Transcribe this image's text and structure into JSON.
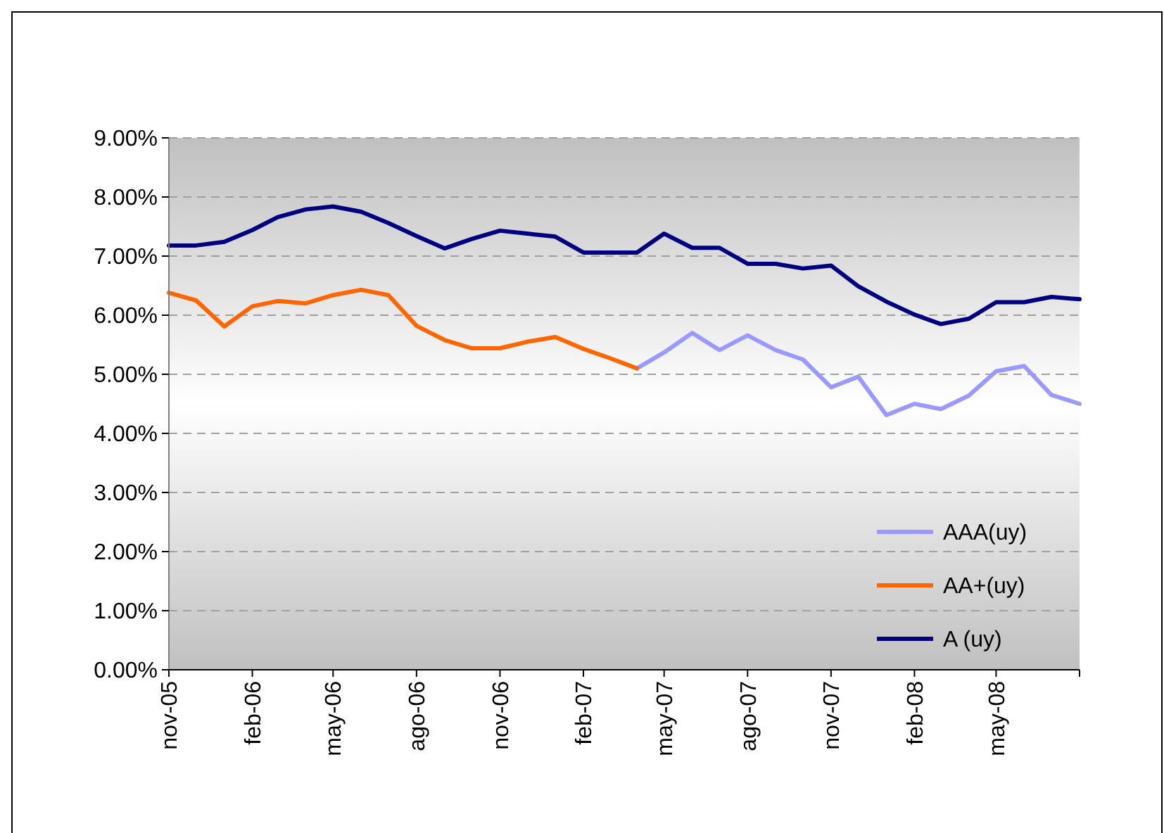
{
  "chart_data": {
    "type": "line",
    "x": [
      "2005-11",
      "2005-12",
      "2006-01",
      "2006-02",
      "2006-03",
      "2006-04",
      "2006-05",
      "2006-06",
      "2006-07",
      "2006-08",
      "2006-09",
      "2006-10",
      "2006-11",
      "2006-12",
      "2007-01",
      "2007-02",
      "2007-03",
      "2007-04",
      "2007-05",
      "2007-06",
      "2007-07",
      "2007-08",
      "2007-09",
      "2007-10",
      "2007-11",
      "2007-12",
      "2008-01",
      "2008-02",
      "2008-03",
      "2008-04",
      "2008-05",
      "2008-06",
      "2008-07",
      "2008-08"
    ],
    "series": [
      {
        "name": "AAA(uy)",
        "color": "#9999ff",
        "values": [
          null,
          null,
          null,
          null,
          null,
          null,
          null,
          null,
          null,
          null,
          null,
          null,
          null,
          null,
          null,
          null,
          null,
          5.1,
          5.37,
          5.7,
          5.41,
          5.66,
          5.41,
          5.25,
          4.78,
          4.96,
          4.31,
          4.5,
          4.41,
          4.64,
          5.05,
          5.14,
          4.65,
          4.5
        ]
      },
      {
        "name": "AA+(uy)",
        "color": "#ff6600",
        "values": [
          6.38,
          6.25,
          5.81,
          6.15,
          6.24,
          6.2,
          6.34,
          6.43,
          6.34,
          5.82,
          5.58,
          5.44,
          5.44,
          5.55,
          5.63,
          5.43,
          5.28,
          5.1,
          null,
          null,
          null,
          null,
          null,
          null,
          null,
          null,
          null,
          null,
          null,
          null,
          null,
          null,
          null,
          null
        ]
      },
      {
        "name": "A (uy)",
        "color": "#000080",
        "values": [
          7.18,
          7.18,
          7.24,
          7.44,
          7.66,
          7.79,
          7.84,
          7.75,
          7.56,
          7.34,
          7.13,
          7.29,
          7.43,
          7.38,
          7.33,
          7.06,
          7.06,
          7.06,
          7.38,
          7.14,
          7.14,
          6.87,
          6.87,
          6.79,
          6.84,
          6.49,
          6.23,
          6.01,
          5.85,
          5.94,
          6.22,
          6.22,
          6.31,
          6.27
        ]
      }
    ],
    "xlim": [
      "2005-11",
      "2008-08"
    ],
    "xticks": [
      {
        "value": "2005-11",
        "label": "nov-05"
      },
      {
        "value": "2006-02",
        "label": "feb-06"
      },
      {
        "value": "2006-05",
        "label": "may-06"
      },
      {
        "value": "2006-08",
        "label": "ago-06"
      },
      {
        "value": "2006-11",
        "label": "nov-06"
      },
      {
        "value": "2007-02",
        "label": "feb-07"
      },
      {
        "value": "2007-05",
        "label": "may-07"
      },
      {
        "value": "2007-08",
        "label": "ago-07"
      },
      {
        "value": "2007-11",
        "label": "nov-07"
      },
      {
        "value": "2008-02",
        "label": "feb-08"
      },
      {
        "value": "2008-05",
        "label": "may-08"
      }
    ],
    "ylim": [
      0,
      9
    ],
    "yticks": [
      {
        "value": 0,
        "label": "0.00%"
      },
      {
        "value": 1,
        "label": "1.00%"
      },
      {
        "value": 2,
        "label": "2.00%"
      },
      {
        "value": 3,
        "label": "3.00%"
      },
      {
        "value": 4,
        "label": "4.00%"
      },
      {
        "value": 5,
        "label": "5.00%"
      },
      {
        "value": 6,
        "label": "6.00%"
      },
      {
        "value": 7,
        "label": "7.00%"
      },
      {
        "value": 8,
        "label": "8.00%"
      },
      {
        "value": 9,
        "label": "9.00%"
      }
    ],
    "grid": "y",
    "legend": "bottom right",
    "marker": "none",
    "line_style": "solid"
  }
}
